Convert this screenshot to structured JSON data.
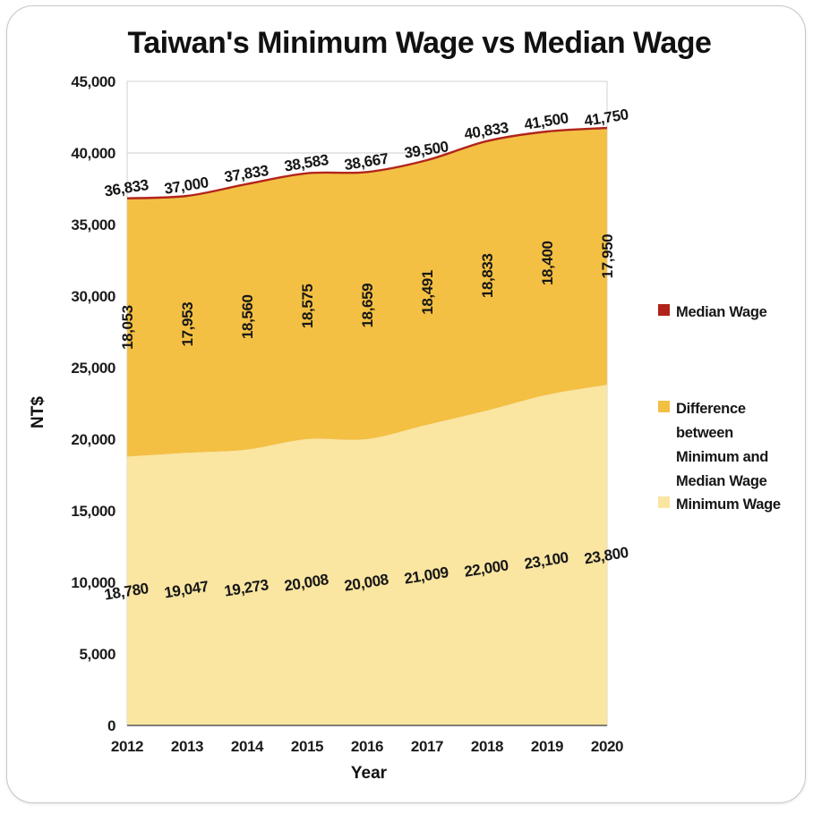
{
  "chart_data": {
    "type": "area",
    "stacked": true,
    "smoothed": true,
    "title": "Taiwan's Minimum Wage vs Median Wage",
    "xlabel": "Year",
    "ylabel": "NT$",
    "ylim": [
      0,
      45000
    ],
    "grid": true,
    "legend_position": "right",
    "categories": [
      "2012",
      "2013",
      "2014",
      "2015",
      "2016",
      "2017",
      "2018",
      "2019",
      "2020"
    ],
    "yticks": {
      "values": [
        0,
        5000,
        10000,
        15000,
        20000,
        25000,
        30000,
        35000,
        40000,
        45000
      ],
      "labels": [
        "0",
        "5,000",
        "10,000",
        "15,000",
        "20,000",
        "25,000",
        "30,000",
        "35,000",
        "40,000",
        "45,000"
      ]
    },
    "series": [
      {
        "name": "Minimum Wage",
        "render": "area",
        "color": "#FAE5A1",
        "values": [
          18780,
          19047,
          19273,
          20008,
          20008,
          21009,
          22000,
          23100,
          23800
        ],
        "labels": [
          "18,780",
          "19,047",
          "19,273",
          "20,008",
          "20,008",
          "21,009",
          "22,000",
          "23,100",
          "23,800"
        ]
      },
      {
        "name": "Difference between Minimum and Median Wage",
        "render": "area",
        "color": "#F3C044",
        "values": [
          18053,
          17953,
          18560,
          18575,
          18659,
          18491,
          18833,
          18400,
          17950
        ],
        "labels": [
          "18,053",
          "17,953",
          "18,560",
          "18,575",
          "18,659",
          "18,491",
          "18,833",
          "18,400",
          "17,950"
        ]
      },
      {
        "name": "Median Wage",
        "render": "line",
        "color": "#B2251C",
        "values": [
          36833,
          37000,
          37833,
          38583,
          38667,
          39500,
          40833,
          41500,
          41750
        ],
        "labels": [
          "36,833",
          "37,000",
          "37,833",
          "38,583",
          "38,667",
          "39,500",
          "40,833",
          "41,500",
          "41,750"
        ]
      }
    ]
  },
  "legend": {
    "items": [
      {
        "label": "Median Wage",
        "color": "#AF2318"
      },
      {
        "label": "Difference between Minimum and Median Wage",
        "color": "#F3C044"
      },
      {
        "label": "Minimum Wage",
        "color": "#FAE5A1"
      }
    ]
  },
  "colors": {
    "gridline": "#D8D8D8",
    "plot_border": "#D8D8D8",
    "axis_line": "#595959"
  }
}
